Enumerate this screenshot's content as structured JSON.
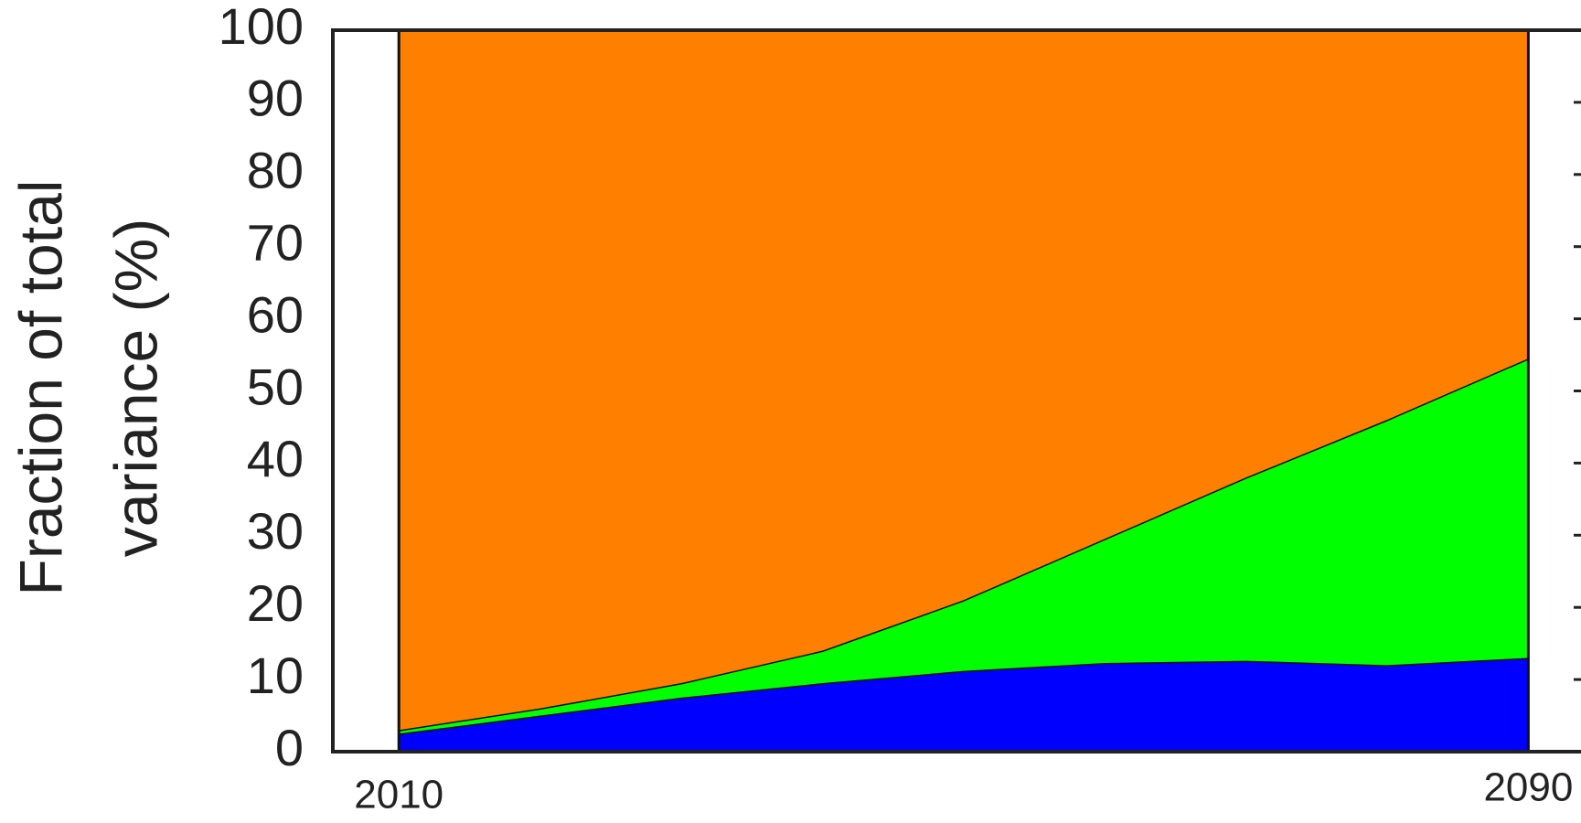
{
  "chart_data": {
    "type": "stacked-area",
    "ylabel": [
      "Fraction of total",
      "variance (%)"
    ],
    "x": [
      2010,
      2020,
      2030,
      2040,
      2050,
      2060,
      2070,
      2080,
      2090
    ],
    "series": [
      {
        "color": "#0000ff",
        "values": [
          2.5,
          5,
          7.5,
          9.5,
          11.2,
          12.3,
          12.6,
          12,
          13
        ]
      },
      {
        "color": "#00ff00",
        "values": [
          0.5,
          1,
          2,
          4.5,
          9.8,
          17.2,
          25.4,
          34,
          41.5
        ]
      },
      {
        "color": "#ff8000",
        "values": [
          97,
          94,
          90.5,
          86,
          79,
          70.5,
          62,
          54,
          45.5
        ]
      }
    ],
    "xlim": [
      2005,
      2100
    ],
    "xticks": [
      2010,
      2090
    ],
    "ylim": [
      0,
      100
    ],
    "yticks": [
      0,
      10,
      20,
      30,
      40,
      50,
      60,
      70,
      80,
      90,
      100
    ]
  }
}
